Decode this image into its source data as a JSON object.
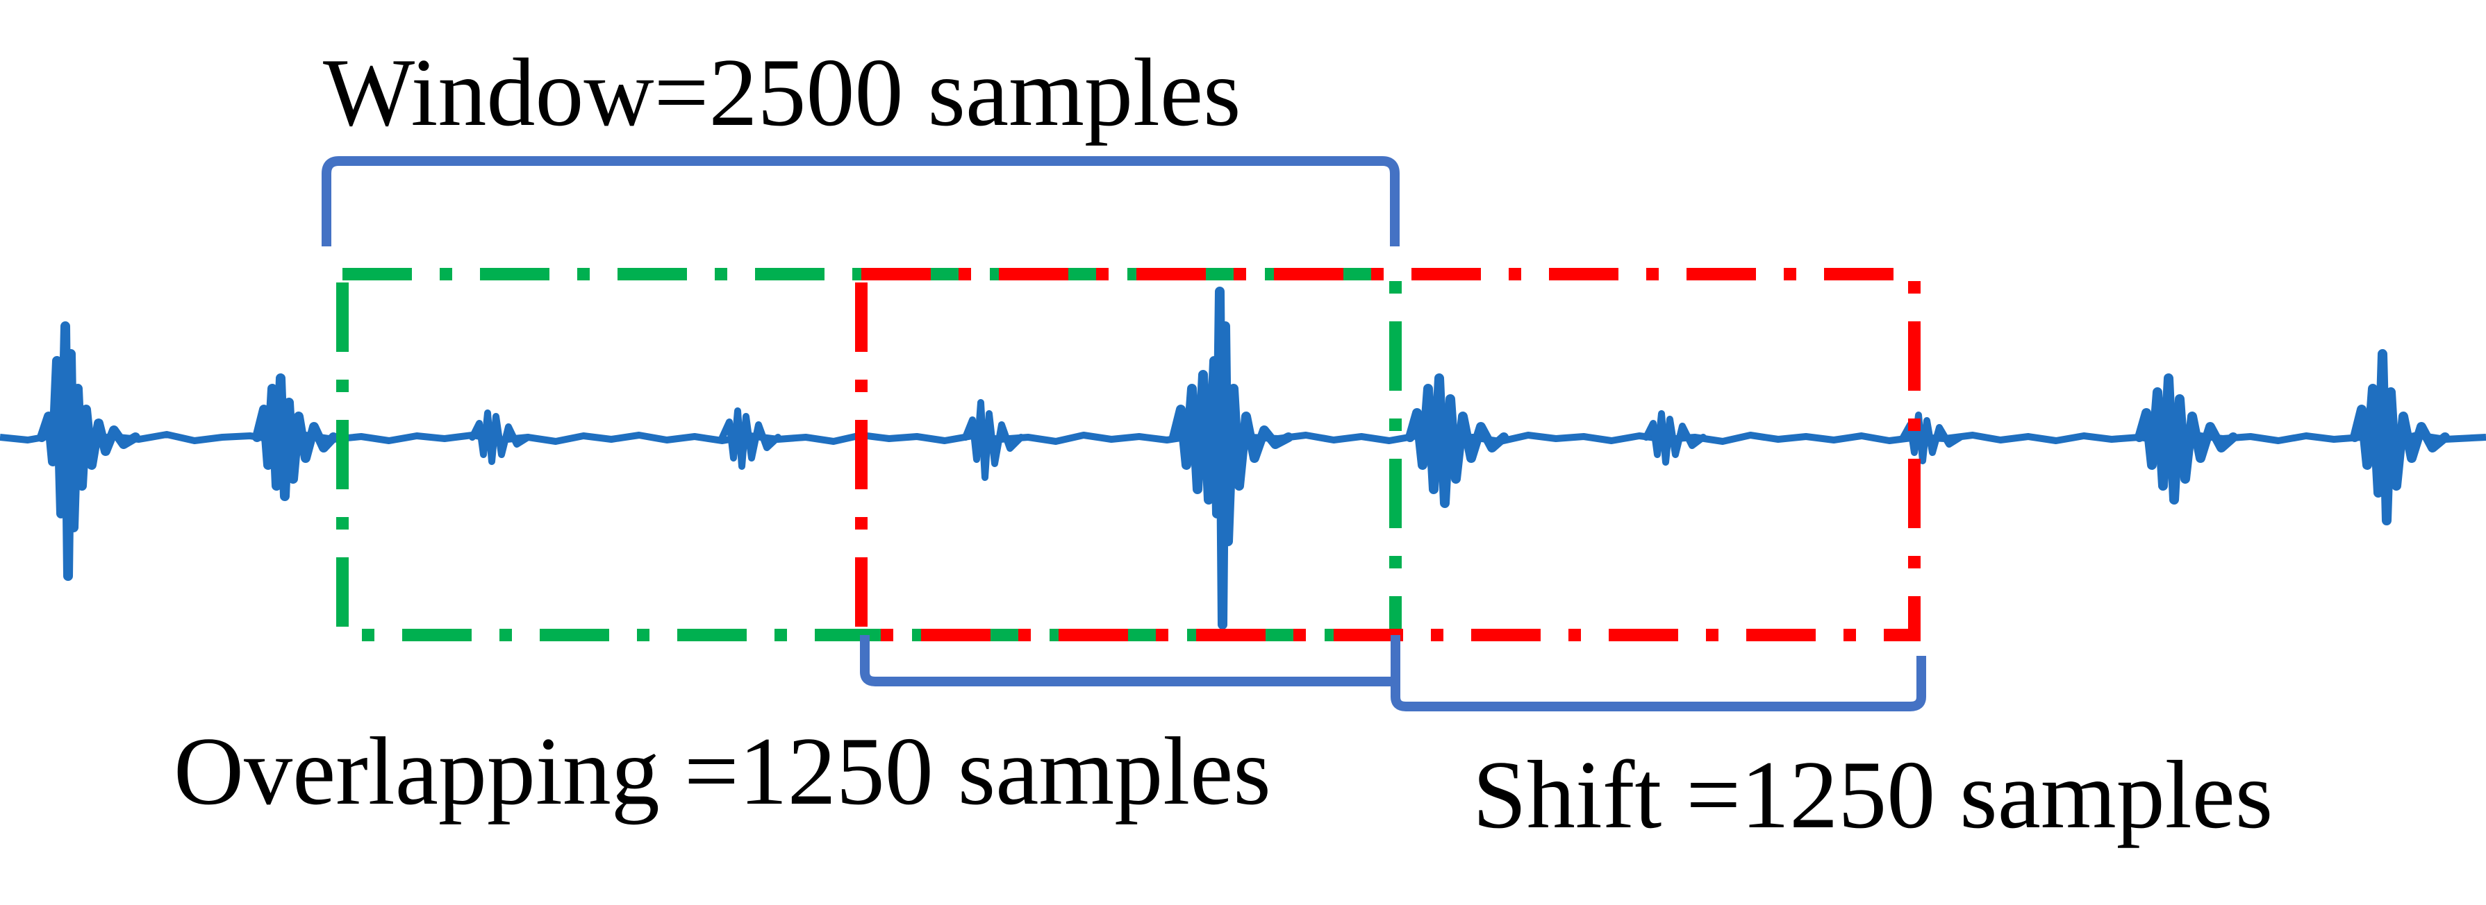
{
  "labels": {
    "window": "Window=2500 samples",
    "overlap": "Overlapping =1250 samples",
    "shift": "Shift =1250 samples"
  },
  "colors": {
    "signal": "#1f6fc0",
    "bracket": "#4472c4",
    "window_1": "#00b050",
    "window_2": "#ff0000"
  }
}
